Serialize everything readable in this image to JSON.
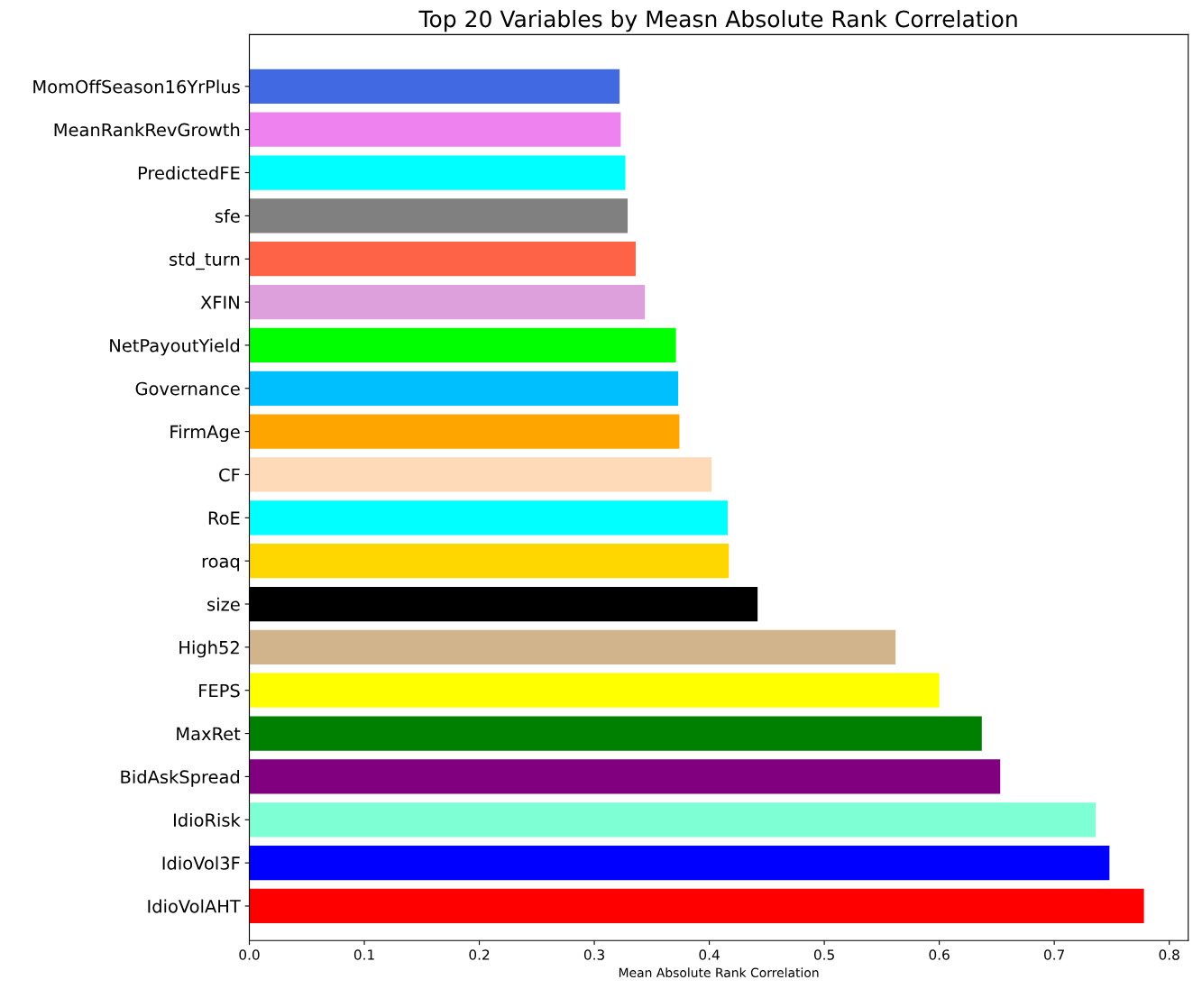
{
  "chart_data": {
    "type": "bar",
    "orientation": "horizontal",
    "title": "Top 20 Variables by Measn Absolute Rank Correlation",
    "xlabel": "Mean Absolute Rank Correlation",
    "categories": [
      "MomOffSeason16YrPlus",
      "MeanRankRevGrowth",
      "PredictedFE",
      "sfe",
      "std_turn",
      "XFIN",
      "NetPayoutYield",
      "Governance",
      "FirmAge",
      "CF",
      "RoE",
      "roaq",
      "size",
      "High52",
      "FEPS",
      "MaxRet",
      "BidAskSpread",
      "IdioRisk",
      "IdioVol3F",
      "IdioVolAHT"
    ],
    "values": [
      0.322,
      0.323,
      0.327,
      0.329,
      0.336,
      0.344,
      0.371,
      0.373,
      0.374,
      0.402,
      0.416,
      0.417,
      0.442,
      0.562,
      0.6,
      0.637,
      0.653,
      0.736,
      0.748,
      0.778
    ],
    "colors": [
      "#4169e1",
      "#ee82ee",
      "#00ffff",
      "#808080",
      "#ff6347",
      "#dda0dd",
      "#00ff00",
      "#00bfff",
      "#ffa500",
      "#ffdab9",
      "#00ffff",
      "#ffd700",
      "#000000",
      "#d2b48c",
      "#ffff00",
      "#008000",
      "#800080",
      "#7fffd4",
      "#0000ff",
      "#ff0000"
    ],
    "xlim": [
      0.0,
      0.8165
    ],
    "xticks": [
      {
        "value": 0,
        "label": "0.0"
      },
      0.1,
      0.2,
      0.3,
      0.4,
      0.5,
      0.6,
      0.7,
      0.8
    ],
    "grid": false,
    "legend": false
  }
}
